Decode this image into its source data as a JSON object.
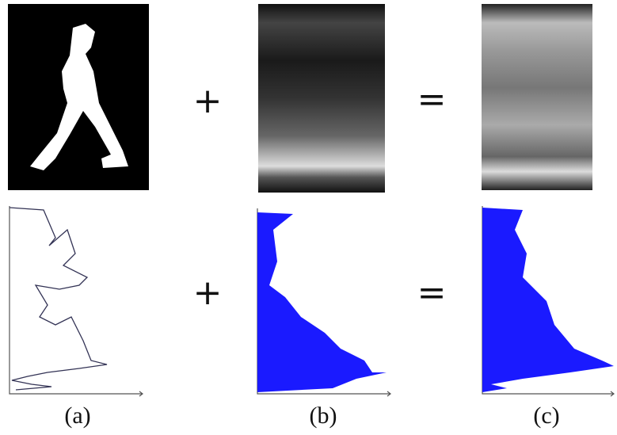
{
  "operators": {
    "plus_top": "+",
    "equals_top": "=",
    "plus_bottom": "+",
    "equals_bottom": "="
  },
  "captions": [
    "(a)",
    "(b)",
    "(c)"
  ]
}
